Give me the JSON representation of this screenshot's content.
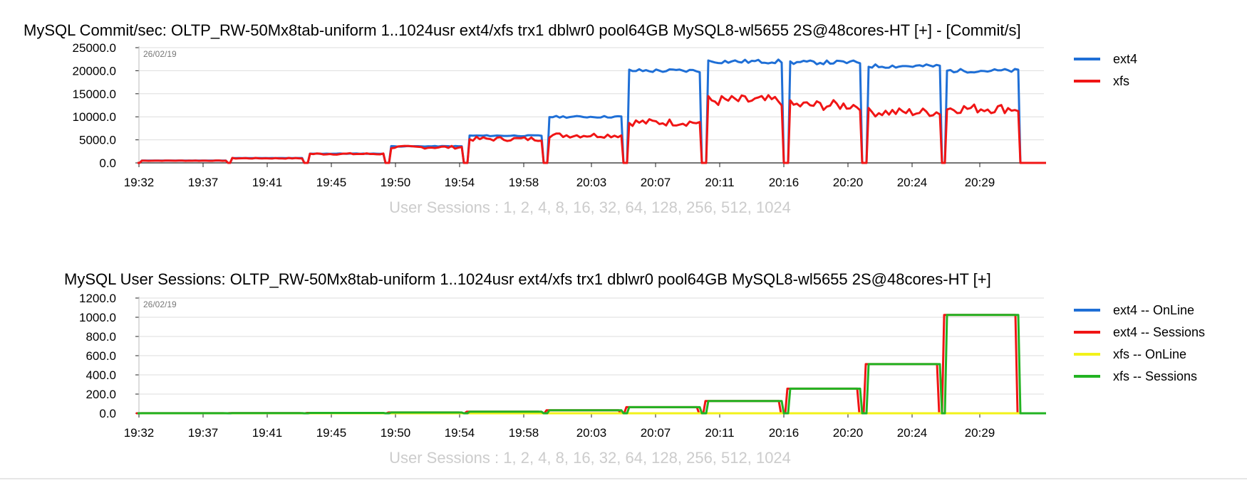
{
  "chart_data": [
    {
      "type": "line",
      "title": "MySQL Commit/sec: OLTP_RW-50Mx8tab-uniform 1..1024usr ext4/xfs trx1 dblwr0 pool64GB MySQL8-wl5655 2S@48cores-HT [+] - [Commit/s]",
      "date_label": "26/02/19",
      "xlabel": "User Sessions : 1, 2, 4, 8, 16, 32, 64, 128, 256, 512, 1024",
      "ylabel": "",
      "ylim": [
        0,
        25000
      ],
      "yticks": [
        "0.0",
        "5000.0",
        "10000.0",
        "15000.0",
        "20000.0",
        "25000.0"
      ],
      "xticks": [
        "19:32",
        "19:37",
        "19:41",
        "19:45",
        "19:50",
        "19:54",
        "19:58",
        "20:03",
        "20:07",
        "20:11",
        "20:16",
        "20:20",
        "20:24",
        "20:29"
      ],
      "grid": "horizontal",
      "legend": "right",
      "phases": [
        {
          "users": 1,
          "ext4": 500,
          "xfs": 480
        },
        {
          "users": 2,
          "ext4": 1050,
          "xfs": 1000
        },
        {
          "users": 4,
          "ext4": 2000,
          "xfs": 1950
        },
        {
          "users": 8,
          "ext4": 3600,
          "xfs": 3400
        },
        {
          "users": 16,
          "ext4": 5900,
          "xfs": 5200
        },
        {
          "users": 32,
          "ext4": 10000,
          "xfs": 6000
        },
        {
          "users": 64,
          "ext4": 20000,
          "xfs": 8800
        },
        {
          "users": 128,
          "ext4": 22000,
          "xfs": 13500
        },
        {
          "users": 256,
          "ext4": 21800,
          "xfs": 12500
        },
        {
          "users": 512,
          "ext4": 21000,
          "xfs": 11000
        },
        {
          "users": 1024,
          "ext4": 20000,
          "xfs": 11800
        }
      ],
      "series": [
        {
          "name": "ext4",
          "color": "#1f6fd6"
        },
        {
          "name": "xfs",
          "color": "#f01515"
        }
      ]
    },
    {
      "type": "line",
      "title": "MySQL User Sessions: OLTP_RW-50Mx8tab-uniform 1..1024usr ext4/xfs trx1 dblwr0 pool64GB MySQL8-wl5655 2S@48cores-HT [+]",
      "date_label": "26/02/19",
      "xlabel": "User Sessions : 1, 2, 4, 8, 16, 32, 64, 128, 256, 512, 1024",
      "ylabel": "",
      "ylim": [
        0,
        1200
      ],
      "yticks": [
        "0.0",
        "200.0",
        "400.0",
        "600.0",
        "800.0",
        "1000.0",
        "1200.0"
      ],
      "xticks": [
        "19:32",
        "19:37",
        "19:41",
        "19:45",
        "19:50",
        "19:54",
        "19:58",
        "20:03",
        "20:07",
        "20:11",
        "20:16",
        "20:20",
        "20:24",
        "20:29"
      ],
      "grid": "horizontal",
      "legend": "right",
      "phases": [
        {
          "users": 1,
          "online": 0
        },
        {
          "users": 2,
          "online": 0
        },
        {
          "users": 4,
          "online": 0
        },
        {
          "users": 8,
          "online": 0
        },
        {
          "users": 16,
          "online": 0
        },
        {
          "users": 32,
          "online": 0
        },
        {
          "users": 64,
          "online": 0
        },
        {
          "users": 128,
          "online": 0
        },
        {
          "users": 256,
          "online": 0
        },
        {
          "users": 512,
          "online": 0
        },
        {
          "users": 1024,
          "online": 0
        }
      ],
      "series": [
        {
          "name": "ext4 -- OnLine",
          "color": "#1f6fd6"
        },
        {
          "name": "ext4 -- Sessions",
          "color": "#f01515"
        },
        {
          "name": "xfs -- OnLine",
          "color": "#f2f21a"
        },
        {
          "name": "xfs -- Sessions",
          "color": "#22b322"
        }
      ]
    }
  ]
}
